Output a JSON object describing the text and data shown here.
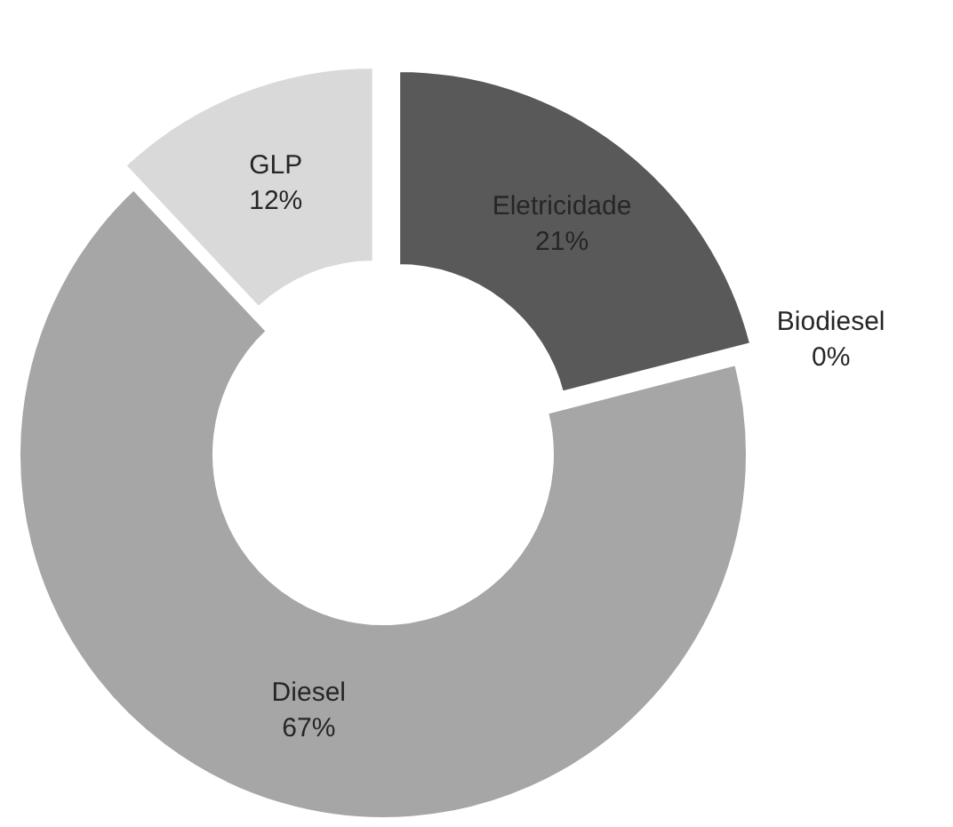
{
  "chart_data": {
    "type": "donut",
    "categories": [
      "Eletricidade",
      "Biodiesel",
      "Diesel",
      "GLP"
    ],
    "values": [
      21,
      0,
      67,
      12
    ],
    "value_labels": [
      "21%",
      "0%",
      "67%",
      "12%"
    ],
    "colors": [
      "#595959",
      "#f2f2f2",
      "#a6a6a6",
      "#d9d9d9"
    ]
  }
}
